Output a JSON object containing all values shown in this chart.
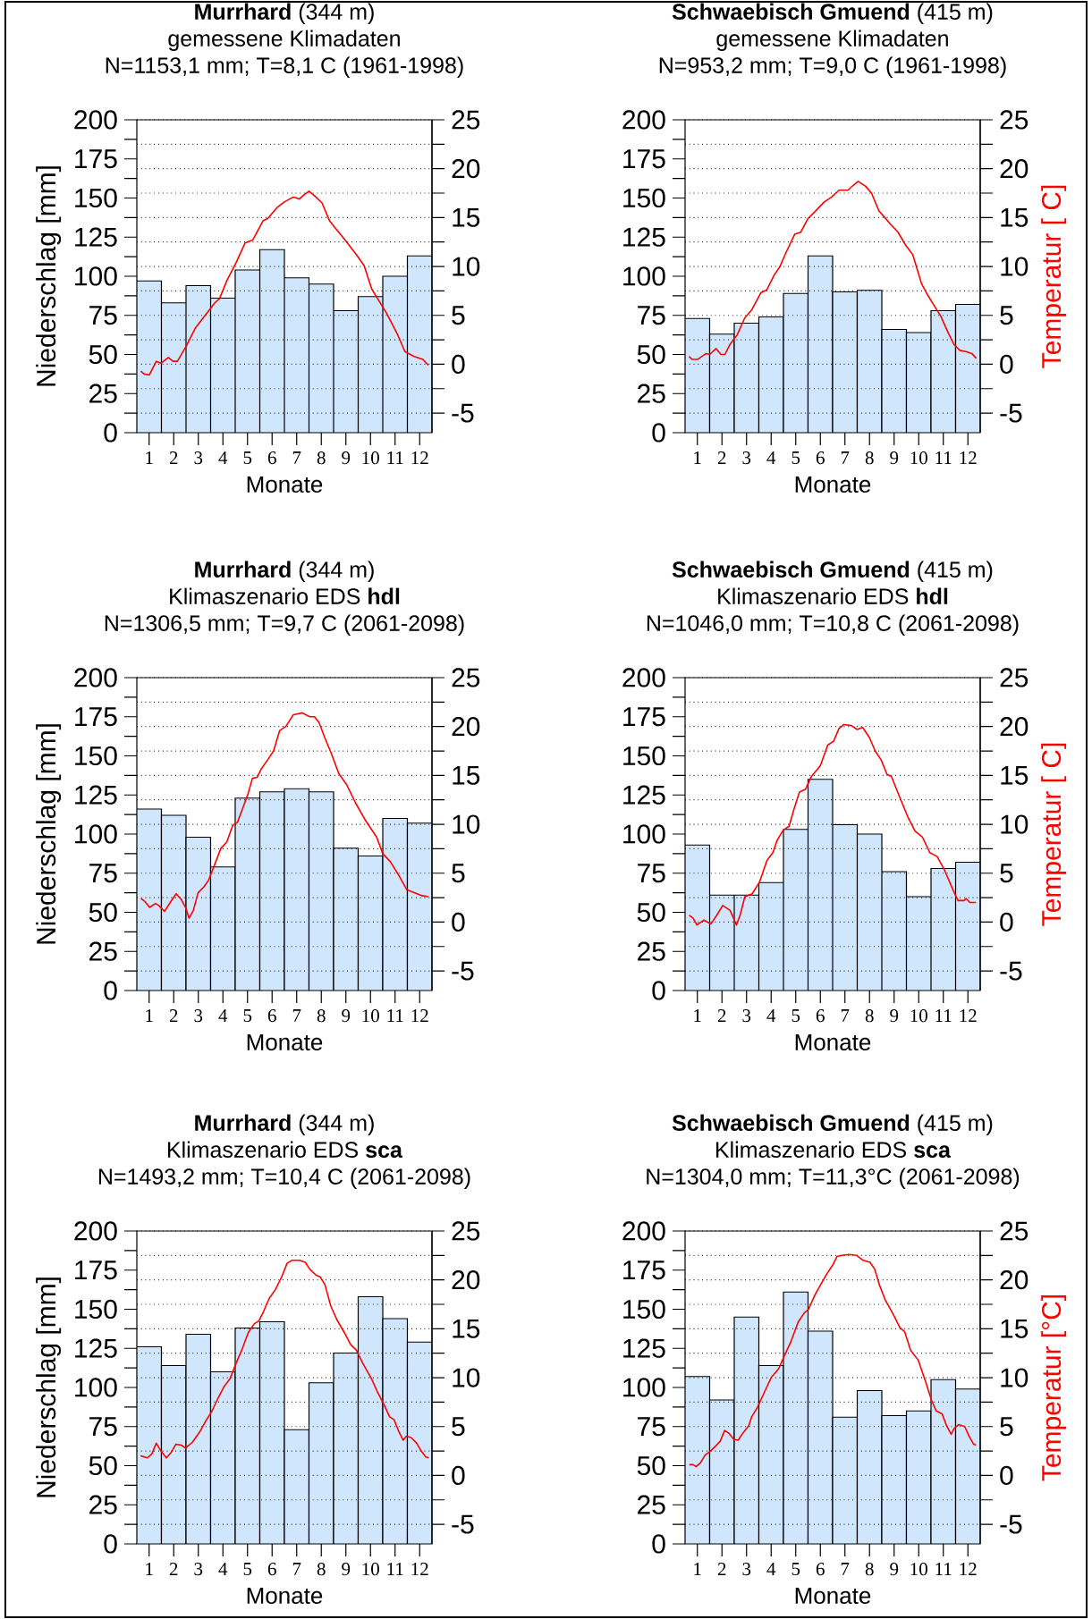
{
  "chart_data": [
    {
      "type": "bar",
      "title": "**Murrhard** (344 m)",
      "subtitle": "gemessene Klimadaten",
      "annotations": [
        "N=1153,1 mm; T=8,1 C (1961-1998)"
      ],
      "xlabel": "Monate",
      "ylabel": "Niederschlag [mm]",
      "x": [
        1,
        2,
        3,
        4,
        5,
        6,
        7,
        8,
        9,
        10,
        11,
        12
      ],
      "xlim": [
        0.5,
        12.5
      ],
      "xticks": [
        1,
        2,
        3,
        4,
        5,
        6,
        7,
        8,
        9,
        10,
        11,
        12
      ],
      "ylim": [
        0,
        200
      ],
      "yticks": [
        0,
        {
          "value": 12.5,
          "label": null
        },
        25,
        {
          "value": 37.5,
          "label": null
        },
        50,
        {
          "value": 62.5,
          "label": null
        },
        75,
        {
          "value": 87.5,
          "label": null
        },
        100,
        {
          "value": 112.5,
          "label": null
        },
        125,
        {
          "value": 137.5,
          "label": null
        },
        150,
        {
          "value": 162.5,
          "label": null
        },
        175,
        {
          "value": 187.5,
          "label": null
        },
        200
      ],
      "y2lim": [
        -7,
        25
      ],
      "y2ticks": [
        -5,
        {
          "value": -2.5,
          "label": null
        },
        0,
        {
          "value": 2.5,
          "label": null
        },
        5,
        {
          "value": 7.5,
          "label": null
        },
        10,
        {
          "value": 12.5,
          "label": null
        },
        15,
        {
          "value": 17.5,
          "label": null
        },
        20,
        {
          "value": 22.5,
          "label": null
        },
        25
      ],
      "grid": "y2",
      "series": [
        {
          "color": "#cfe6fc",
          "values": [
            97,
            83,
            94,
            86,
            104,
            117,
            99,
            95,
            78,
            87,
            100,
            113
          ]
        },
        {
          "type": "line",
          "axis": "y2",
          "color": "#ff0000",
          "x": [
            0.66,
            0.8,
            1.01,
            1.29,
            1.48,
            1.78,
            1.97,
            2.15,
            2.52,
            2.88,
            3.25,
            3.68,
            3.86,
            4.17,
            4.54,
            4.9,
            5.21,
            5.64,
            5.82,
            6.19,
            6.5,
            6.86,
            7.11,
            7.29,
            7.5,
            7.78,
            8.03,
            8.33,
            8.58,
            8.94,
            9.43,
            9.74,
            10.05,
            10.29,
            10.66,
            11.09,
            11.4,
            11.77,
            12.13,
            12.35
          ],
          "values": [
            -0.7,
            -1.0,
            -1.1,
            0.3,
            0.1,
            0.7,
            0.3,
            0.3,
            1.9,
            3.7,
            4.9,
            6.3,
            6.7,
            8.6,
            10.4,
            12.4,
            12.7,
            14.7,
            14.9,
            16.0,
            16.6,
            17.1,
            16.9,
            17.3,
            17.7,
            17.1,
            16.5,
            14.7,
            13.9,
            12.8,
            11.2,
            10.1,
            7.7,
            6.7,
            5.2,
            3.1,
            1.3,
            0.8,
            0.5,
            -0.1
          ]
        }
      ]
    },
    {
      "type": "bar",
      "title": "**Schwaebisch Gmuend** (415 m)",
      "subtitle": "gemessene Klimadaten",
      "annotations": [
        "N=953,2 mm; T=9,0 C (1961-1998)"
      ],
      "xlabel": "Monate",
      "y2label": "Temperatur [ C]",
      "x": [
        1,
        2,
        3,
        4,
        5,
        6,
        7,
        8,
        9,
        10,
        11,
        12
      ],
      "xlim": [
        0.5,
        12.5
      ],
      "xticks": [
        1,
        2,
        3,
        4,
        5,
        6,
        7,
        8,
        9,
        10,
        11,
        12
      ],
      "ylim": [
        0,
        200
      ],
      "yticks": [
        0,
        {
          "value": 12.5,
          "label": null
        },
        25,
        {
          "value": 37.5,
          "label": null
        },
        50,
        {
          "value": 62.5,
          "label": null
        },
        75,
        {
          "value": 87.5,
          "label": null
        },
        100,
        {
          "value": 112.5,
          "label": null
        },
        125,
        {
          "value": 137.5,
          "label": null
        },
        150,
        {
          "value": 162.5,
          "label": null
        },
        175,
        {
          "value": 187.5,
          "label": null
        },
        200
      ],
      "y2lim": [
        -7,
        25
      ],
      "y2ticks": [
        -5,
        {
          "value": -2.5,
          "label": null
        },
        0,
        {
          "value": 2.5,
          "label": null
        },
        5,
        {
          "value": 7.5,
          "label": null
        },
        10,
        {
          "value": 12.5,
          "label": null
        },
        15,
        {
          "value": 17.5,
          "label": null
        },
        20,
        {
          "value": 22.5,
          "label": null
        },
        25
      ],
      "grid": "y2",
      "series": [
        {
          "color": "#cfe6fc",
          "values": [
            73,
            63,
            70,
            74,
            89,
            113,
            90,
            91,
            66,
            64,
            78,
            82
          ]
        },
        {
          "type": "line",
          "axis": "y2",
          "color": "#ff0000",
          "x": [
            0.66,
            0.78,
            1.02,
            1.36,
            1.5,
            1.76,
            1.96,
            2.12,
            2.32,
            2.62,
            2.92,
            3.22,
            3.58,
            3.82,
            4.12,
            4.36,
            4.6,
            4.96,
            5.2,
            5.5,
            5.74,
            6.16,
            6.46,
            6.76,
            7.12,
            7.34,
            7.54,
            7.84,
            8.08,
            8.38,
            8.62,
            8.86,
            9.16,
            9.46,
            9.76,
            10.12,
            10.36,
            10.6,
            10.9,
            11.2,
            11.44,
            11.68,
            11.92,
            12.16,
            12.34
          ],
          "values": [
            0.8,
            0.5,
            0.5,
            1.1,
            1.0,
            1.6,
            1.0,
            1.0,
            2.0,
            3.0,
            4.7,
            5.6,
            7.3,
            7.6,
            9.1,
            10.0,
            11.4,
            13.3,
            13.5,
            14.9,
            15.5,
            16.6,
            17.1,
            17.8,
            17.8,
            18.3,
            18.7,
            18.2,
            17.5,
            15.7,
            15.0,
            14.3,
            13.5,
            12.2,
            11.2,
            8.2,
            7.1,
            6.1,
            4.9,
            3.2,
            2.0,
            1.4,
            1.3,
            1.1,
            0.6
          ]
        }
      ]
    },
    {
      "type": "bar",
      "title": "**Murrhard** (344 m)",
      "subtitle": "Klimaszenario EDS **hdl**",
      "annotations": [
        "N=1306,5 mm; T=9,7 C (2061-2098)"
      ],
      "xlabel": "Monate",
      "ylabel": "Niederschlag [mm]",
      "x": [
        1,
        2,
        3,
        4,
        5,
        6,
        7,
        8,
        9,
        10,
        11,
        12
      ],
      "xlim": [
        0.5,
        12.5
      ],
      "xticks": [
        1,
        2,
        3,
        4,
        5,
        6,
        7,
        8,
        9,
        10,
        11,
        12
      ],
      "ylim": [
        0,
        200
      ],
      "yticks": [
        0,
        {
          "value": 12.5,
          "label": null
        },
        25,
        {
          "value": 37.5,
          "label": null
        },
        50,
        {
          "value": 62.5,
          "label": null
        },
        75,
        {
          "value": 87.5,
          "label": null
        },
        100,
        {
          "value": 112.5,
          "label": null
        },
        125,
        {
          "value": 137.5,
          "label": null
        },
        150,
        {
          "value": 162.5,
          "label": null
        },
        175,
        {
          "value": 187.5,
          "label": null
        },
        200
      ],
      "y2lim": [
        -7,
        25
      ],
      "y2ticks": [
        -5,
        {
          "value": -2.5,
          "label": null
        },
        0,
        {
          "value": 2.5,
          "label": null
        },
        5,
        {
          "value": 7.5,
          "label": null
        },
        10,
        {
          "value": 12.5,
          "label": null
        },
        15,
        {
          "value": 17.5,
          "label": null
        },
        20,
        {
          "value": 22.5,
          "label": null
        },
        25
      ],
      "grid": "y2",
      "series": [
        {
          "color": "#cfe6fc",
          "values": [
            116,
            112,
            98,
            79,
            123,
            127,
            129,
            127,
            91,
            86,
            110,
            107
          ]
        },
        {
          "type": "line",
          "axis": "y2",
          "color": "#ff0000",
          "x": [
            0.67,
            0.83,
            1.02,
            1.26,
            1.39,
            1.63,
            1.88,
            2.1,
            2.31,
            2.5,
            2.62,
            2.8,
            2.99,
            3.23,
            3.42,
            3.67,
            3.91,
            4.16,
            4.4,
            4.59,
            4.77,
            5.02,
            5.2,
            5.39,
            5.57,
            5.82,
            6.06,
            6.31,
            6.56,
            6.86,
            7.04,
            7.22,
            7.53,
            7.72,
            7.91,
            8.15,
            8.4,
            8.71,
            9.02,
            9.39,
            9.82,
            10.25,
            10.5,
            10.8,
            11.17,
            11.48,
            11.79,
            12.1,
            12.35
          ],
          "values": [
            2.4,
            2.1,
            1.5,
            1.9,
            1.7,
            1.1,
            2.1,
            2.9,
            2.3,
            1.4,
            0.4,
            1.2,
            3.0,
            3.6,
            4.3,
            5.9,
            7.5,
            8.2,
            9.9,
            10.2,
            11.4,
            13.1,
            14.7,
            14.8,
            15.7,
            16.6,
            17.5,
            19.6,
            20.0,
            21.2,
            21.3,
            21.4,
            21.0,
            21.0,
            20.4,
            18.8,
            17.3,
            15.2,
            14.1,
            12.2,
            10.3,
            8.7,
            7.0,
            6.2,
            4.7,
            3.3,
            3.0,
            2.7,
            2.6
          ]
        }
      ]
    },
    {
      "type": "bar",
      "title": "**Schwaebisch Gmuend** (415 m)",
      "subtitle": "Klimaszenario EDS **hdl**",
      "annotations": [
        "N=1046,0 mm; T=10,8 C (2061-2098)"
      ],
      "xlabel": "Monate",
      "y2label": "Temperatur [ C]",
      "x": [
        1,
        2,
        3,
        4,
        5,
        6,
        7,
        8,
        9,
        10,
        11,
        12
      ],
      "xlim": [
        0.5,
        12.5
      ],
      "xticks": [
        1,
        2,
        3,
        4,
        5,
        6,
        7,
        8,
        9,
        10,
        11,
        12
      ],
      "ylim": [
        0,
        200
      ],
      "yticks": [
        0,
        {
          "value": 12.5,
          "label": null
        },
        25,
        {
          "value": 37.5,
          "label": null
        },
        50,
        {
          "value": 62.5,
          "label": null
        },
        75,
        {
          "value": 87.5,
          "label": null
        },
        100,
        {
          "value": 112.5,
          "label": null
        },
        125,
        {
          "value": 137.5,
          "label": null
        },
        150,
        {
          "value": 162.5,
          "label": null
        },
        175,
        {
          "value": 187.5,
          "label": null
        },
        200
      ],
      "y2lim": [
        -7,
        25
      ],
      "y2ticks": [
        -5,
        {
          "value": -2.5,
          "label": null
        },
        0,
        {
          "value": 2.5,
          "label": null
        },
        5,
        {
          "value": 7.5,
          "label": null
        },
        10,
        {
          "value": 12.5,
          "label": null
        },
        15,
        {
          "value": 17.5,
          "label": null
        },
        20,
        {
          "value": 22.5,
          "label": null
        },
        25
      ],
      "grid": "y2",
      "series": [
        {
          "color": "#cfe6fc",
          "values": [
            93,
            61,
            61,
            69,
            103,
            135,
            106,
            100,
            76,
            60,
            78,
            82
          ]
        },
        {
          "type": "line",
          "axis": "y2",
          "color": "#ff0000",
          "x": [
            0.67,
            0.83,
            0.98,
            1.27,
            1.55,
            1.79,
            2.03,
            2.33,
            2.59,
            2.75,
            2.93,
            3.23,
            3.53,
            3.83,
            4.07,
            4.25,
            4.49,
            4.73,
            4.91,
            5.15,
            5.4,
            5.64,
            6.0,
            6.3,
            6.54,
            6.76,
            6.96,
            7.26,
            7.5,
            7.72,
            7.99,
            8.23,
            8.47,
            8.71,
            8.89,
            9.19,
            9.55,
            9.85,
            10.15,
            10.45,
            10.75,
            11.05,
            11.41,
            11.6,
            11.84,
            11.93,
            12.08,
            12.32
          ],
          "values": [
            0.7,
            0.4,
            -0.3,
            0.2,
            -0.2,
            0.7,
            1.7,
            1.2,
            -0.3,
            0.8,
            2.6,
            2.9,
            4.1,
            6.3,
            7.1,
            8.4,
            9.4,
            9.8,
            11.4,
            13.3,
            13.6,
            14.9,
            16.0,
            18.1,
            18.5,
            19.8,
            20.2,
            20.1,
            19.7,
            19.9,
            18.9,
            17.5,
            16.6,
            15.1,
            14.9,
            13.0,
            10.8,
            9.3,
            8.7,
            7.1,
            6.7,
            5.3,
            3.2,
            2.2,
            2.2,
            2.4,
            2.0,
            2.0
          ]
        }
      ]
    },
    {
      "type": "bar",
      "title": "**Murrhard** (344 m)",
      "subtitle": "Klimaszenario EDS **sca**",
      "annotations": [
        "N=1493,2 mm; T=10,4 C (2061-2098)"
      ],
      "xlabel": "Monate",
      "ylabel": "Niederschlag [mm]",
      "x": [
        1,
        2,
        3,
        4,
        5,
        6,
        7,
        8,
        9,
        10,
        11,
        12
      ],
      "xlim": [
        0.5,
        12.5
      ],
      "xticks": [
        1,
        2,
        3,
        4,
        5,
        6,
        7,
        8,
        9,
        10,
        11,
        12
      ],
      "ylim": [
        0,
        200
      ],
      "yticks": [
        0,
        {
          "value": 12.5,
          "label": null
        },
        25,
        {
          "value": 37.5,
          "label": null
        },
        50,
        {
          "value": 62.5,
          "label": null
        },
        75,
        {
          "value": 87.5,
          "label": null
        },
        100,
        {
          "value": 112.5,
          "label": null
        },
        125,
        {
          "value": 137.5,
          "label": null
        },
        150,
        {
          "value": 162.5,
          "label": null
        },
        175,
        {
          "value": 187.5,
          "label": null
        },
        200
      ],
      "y2lim": [
        -7,
        25
      ],
      "y2ticks": [
        -5,
        {
          "value": -2.5,
          "label": null
        },
        0,
        {
          "value": 2.5,
          "label": null
        },
        5,
        {
          "value": 7.5,
          "label": null
        },
        10,
        {
          "value": 12.5,
          "label": null
        },
        15,
        {
          "value": 17.5,
          "label": null
        },
        20,
        {
          "value": 22.5,
          "label": null
        },
        25
      ],
      "grid": "y2",
      "series": [
        {
          "color": "#cfe6fc",
          "values": [
            126,
            114,
            134,
            110,
            138,
            142,
            73,
            103,
            122,
            158,
            144,
            129
          ]
        },
        {
          "type": "line",
          "axis": "y2",
          "color": "#ff0000",
          "x": [
            0.65,
            0.8,
            0.93,
            1.11,
            1.29,
            1.48,
            1.7,
            1.91,
            2.09,
            2.31,
            2.48,
            2.76,
            3.07,
            3.31,
            3.56,
            3.8,
            4.05,
            4.29,
            4.54,
            4.78,
            5.03,
            5.27,
            5.46,
            5.64,
            5.88,
            6.13,
            6.37,
            6.61,
            6.8,
            7.11,
            7.35,
            7.53,
            7.78,
            7.96,
            8.15,
            8.39,
            8.64,
            8.94,
            9.19,
            9.43,
            9.68,
            10.04,
            10.29,
            10.54,
            10.78,
            10.96,
            11.15,
            11.33,
            11.45,
            11.64,
            11.88,
            12.06,
            12.25,
            12.37
          ],
          "values": [
            2.0,
            1.9,
            1.8,
            2.2,
            3.3,
            2.5,
            1.8,
            2.4,
            3.2,
            3.1,
            2.8,
            3.4,
            4.5,
            5.6,
            6.6,
            7.9,
            9.1,
            9.9,
            11.5,
            12.9,
            14.6,
            15.5,
            15.8,
            16.7,
            18.1,
            19.0,
            20.2,
            21.7,
            22.0,
            22.0,
            21.8,
            21.1,
            20.5,
            20.3,
            19.5,
            17.3,
            15.9,
            14.6,
            13.4,
            12.8,
            11.5,
            9.9,
            8.5,
            7.3,
            6.0,
            5.7,
            4.5,
            3.6,
            4.0,
            3.9,
            3.3,
            2.5,
            1.9,
            1.8
          ]
        }
      ]
    },
    {
      "type": "bar",
      "title": "**Schwaebisch Gmuend** (415 m)",
      "subtitle": "Klimaszenario EDS **sca**",
      "annotations": [
        "N=1304,0 mm; T=11,3°C (2061-2098)"
      ],
      "xlabel": "Monate",
      "y2label": "Temperatur [°C]",
      "x": [
        1,
        2,
        3,
        4,
        5,
        6,
        7,
        8,
        9,
        10,
        11,
        12
      ],
      "xlim": [
        0.5,
        12.5
      ],
      "xticks": [
        1,
        2,
        3,
        4,
        5,
        6,
        7,
        8,
        9,
        10,
        11,
        12
      ],
      "ylim": [
        0,
        200
      ],
      "yticks": [
        0,
        {
          "value": 12.5,
          "label": null
        },
        25,
        {
          "value": 37.5,
          "label": null
        },
        50,
        {
          "value": 62.5,
          "label": null
        },
        75,
        {
          "value": 87.5,
          "label": null
        },
        100,
        {
          "value": 112.5,
          "label": null
        },
        125,
        {
          "value": 137.5,
          "label": null
        },
        150,
        {
          "value": 162.5,
          "label": null
        },
        175,
        {
          "value": 187.5,
          "label": null
        },
        200
      ],
      "y2lim": [
        -7,
        25
      ],
      "y2ticks": [
        -5,
        {
          "value": -2.5,
          "label": null
        },
        0,
        {
          "value": 2.5,
          "label": null
        },
        5,
        {
          "value": 7.5,
          "label": null
        },
        10,
        {
          "value": 12.5,
          "label": null
        },
        15,
        {
          "value": 17.5,
          "label": null
        },
        20,
        {
          "value": 22.5,
          "label": null
        },
        25
      ],
      "grid": "y2",
      "series": [
        {
          "color": "#cfe6fc",
          "values": [
            107,
            92,
            145,
            114,
            161,
            136,
            81,
            98,
            82,
            85,
            105,
            99
          ]
        },
        {
          "type": "line",
          "axis": "y2",
          "color": "#ff0000",
          "x": [
            0.67,
            0.83,
            0.95,
            1.13,
            1.32,
            1.5,
            1.74,
            1.93,
            2.11,
            2.29,
            2.48,
            2.66,
            2.84,
            3.09,
            3.21,
            3.45,
            3.76,
            4.0,
            4.3,
            4.55,
            4.79,
            5.1,
            5.34,
            5.52,
            5.77,
            6.01,
            6.26,
            6.5,
            6.68,
            6.87,
            7.17,
            7.48,
            7.74,
            8.02,
            8.21,
            8.4,
            8.63,
            8.94,
            9.24,
            9.43,
            9.67,
            9.98,
            10.28,
            10.52,
            10.71,
            10.95,
            11.13,
            11.32,
            11.44,
            11.62,
            11.87,
            12.05,
            12.23,
            12.33
          ],
          "values": [
            1.1,
            1.1,
            0.9,
            1.3,
            2.1,
            2.4,
            3.0,
            3.5,
            4.6,
            4.3,
            3.7,
            3.6,
            4.3,
            5.1,
            6.0,
            7.0,
            8.7,
            10.0,
            10.9,
            12.3,
            13.6,
            15.7,
            16.6,
            17.0,
            18.4,
            19.5,
            20.6,
            21.5,
            22.4,
            22.5,
            22.6,
            22.5,
            22.0,
            21.8,
            21.1,
            19.5,
            18.0,
            16.6,
            15.1,
            14.7,
            12.8,
            11.8,
            9.6,
            7.7,
            6.6,
            6.3,
            5.1,
            4.2,
            4.8,
            5.2,
            5.0,
            4.0,
            3.2,
            3.1
          ]
        }
      ]
    }
  ]
}
